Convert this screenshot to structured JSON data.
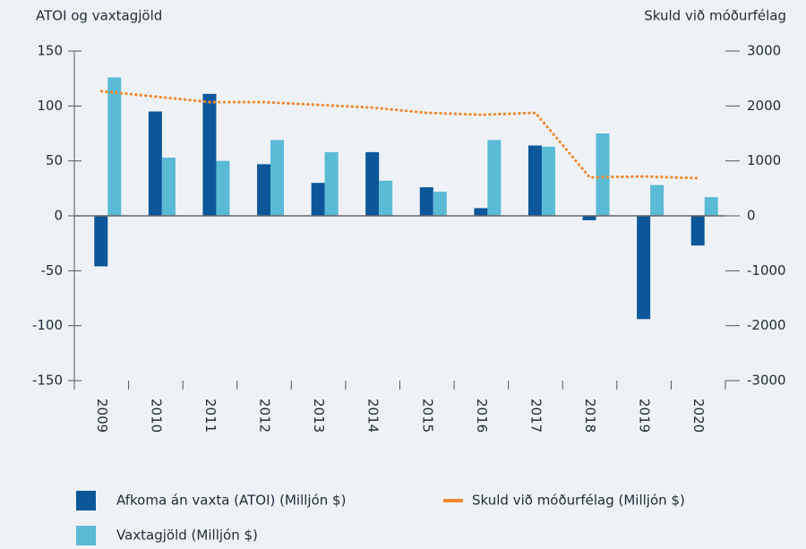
{
  "chart_data": {
    "type": "bar",
    "y_label": "ATOI og vaxtagjöld",
    "y2_label": "Skuld við móðurfélag",
    "categories": [
      "2009",
      "2010",
      "2011",
      "2012",
      "2013",
      "2014",
      "2015",
      "2016",
      "2017",
      "2018",
      "2019",
      "2020"
    ],
    "series": [
      {
        "name": "Afkoma án vaxta (ATOI) (Milljón $)",
        "color": "#0b5799",
        "type": "bar",
        "values": [
          -46,
          95,
          111,
          47,
          30,
          58,
          26,
          7,
          64,
          -4,
          -94,
          -27
        ]
      },
      {
        "name": "Vaxtagjöld (Milljón $)",
        "color": "#5bbad5",
        "type": "bar",
        "values": [
          126,
          53,
          50,
          69,
          58,
          32,
          22,
          69,
          63,
          75,
          28,
          17
        ]
      },
      {
        "name": "Skuld við móðurfélag (Milljón $)",
        "color": "#f08a2c",
        "type": "line",
        "axis": "y2",
        "values": [
          2270,
          2170,
          2070,
          2070,
          2020,
          1970,
          1875,
          1840,
          1875,
          700,
          717,
          685
        ]
      }
    ],
    "ylim": [
      -150,
      150
    ],
    "yticks": [
      -150,
      -100,
      -50,
      0,
      50,
      100,
      150
    ],
    "y2lim": [
      -3000,
      3000
    ],
    "y2ticks": [
      -3000,
      -2000,
      -1000,
      0,
      1000,
      2000,
      3000
    ]
  }
}
